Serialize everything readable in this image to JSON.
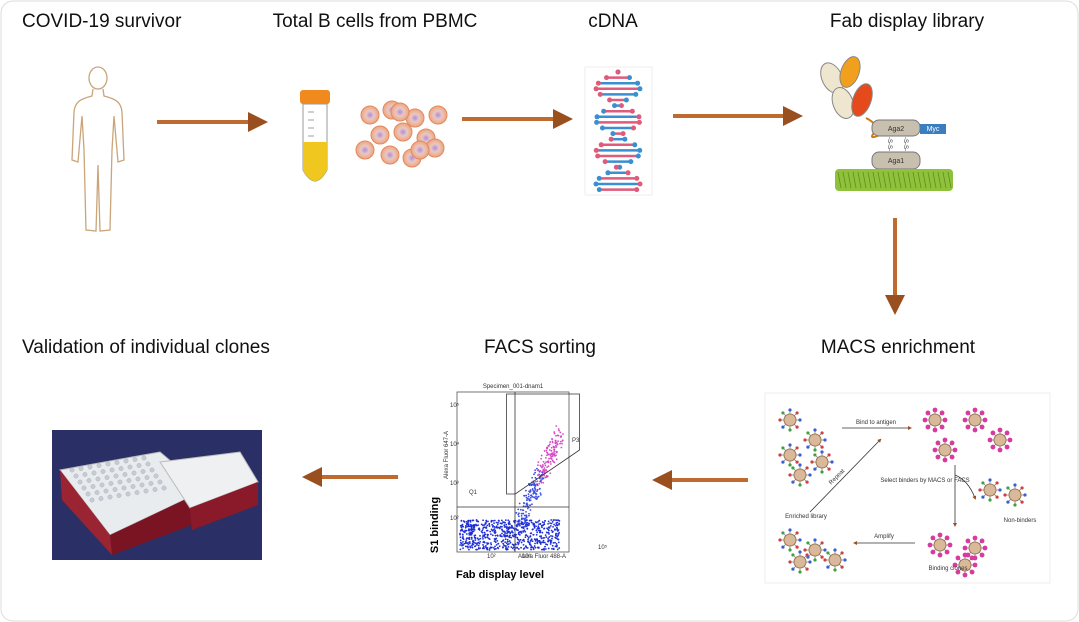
{
  "stages": [
    {
      "label": "COVID-19 survivor"
    },
    {
      "label": "Total B cells from PBMC"
    },
    {
      "label": "cDNA"
    },
    {
      "label": "Fab display library"
    },
    {
      "label": "MACS enrichment"
    },
    {
      "label": "FACS sorting"
    },
    {
      "label": "Validation of individual clones"
    }
  ],
  "fab_diagram": {
    "labels": [
      "Aga2",
      "Myc",
      "Aga1",
      "-S-S-",
      "-S-S-"
    ]
  },
  "facs_plot": {
    "title": "Specimen_001-dnam1",
    "gates": [
      "P3",
      "Q1"
    ],
    "x_axis": "Alexa Fluor 488-A",
    "y_axis": "Alexa Fluor 647-A",
    "y_title": "S1 binding",
    "x_title": "Fab display level",
    "x_ticks": [
      "10²",
      "10³",
      "10⁵"
    ],
    "y_ticks": [
      "10⁵",
      "10⁴",
      "10³",
      "10²"
    ]
  },
  "macs_diagram": {
    "steps": [
      "Bind to antigen",
      "Select binders by MACS or FACS",
      "Non-binders",
      "Binding clones",
      "Amplify",
      "Enriched library",
      "Repeat"
    ]
  }
}
